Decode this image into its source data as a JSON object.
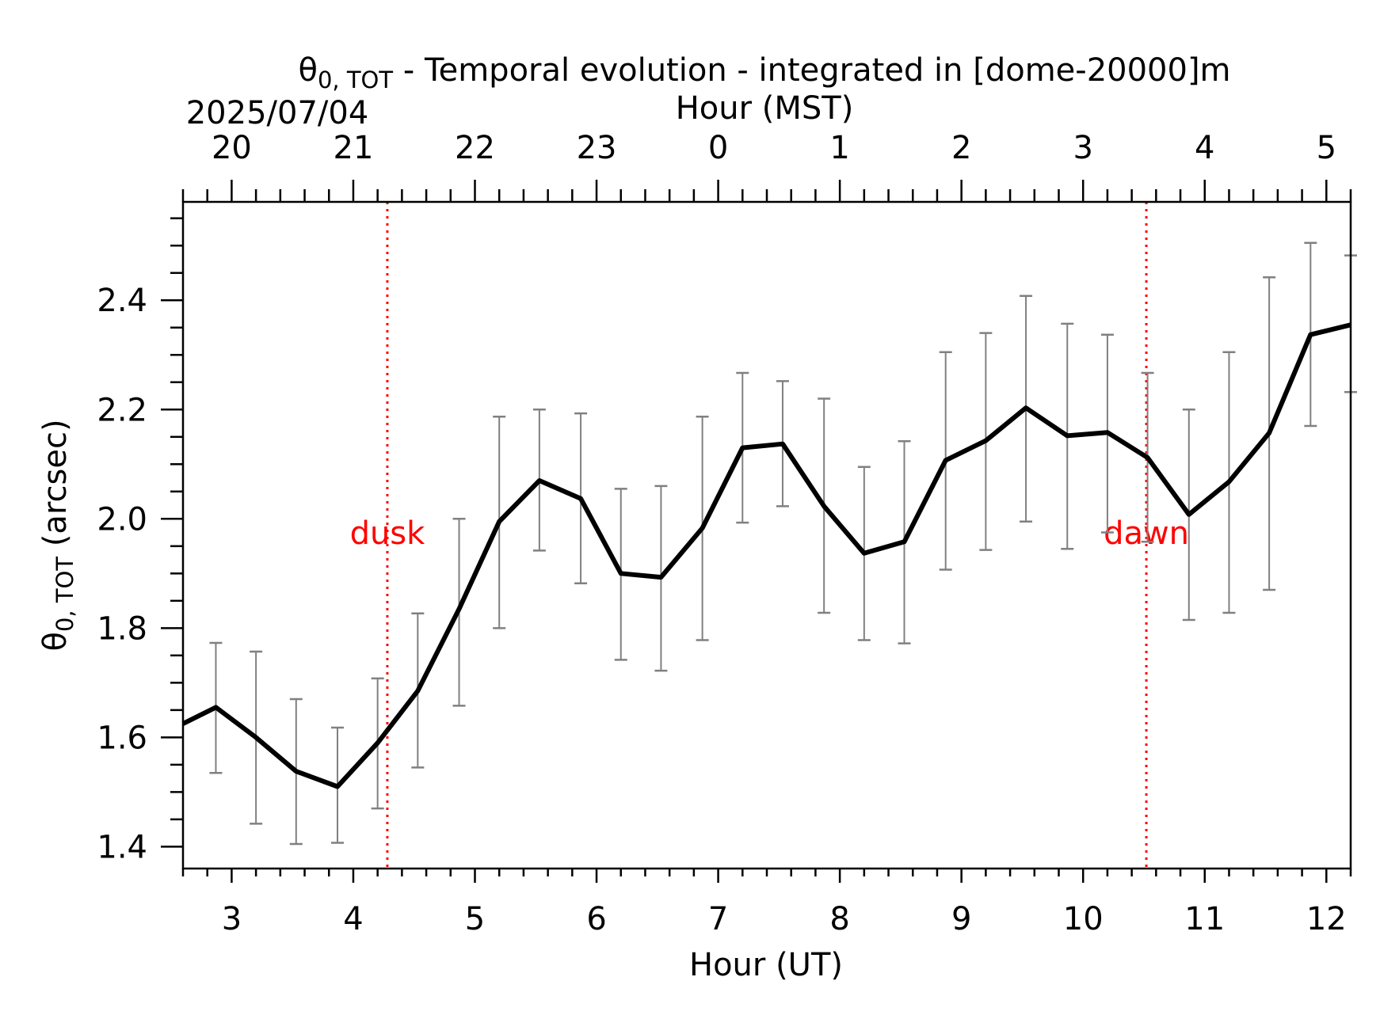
{
  "chart_data": {
    "type": "line",
    "title_parts": {
      "symbol": "θ",
      "sub": "0, TOT",
      "rest": " - Temporal evolution - integrated in [dome-20000]m"
    },
    "date_label": "2025/07/04",
    "xlabel": "Hour (UT)",
    "xlabel_top": "Hour (MST)",
    "ylabel_parts": {
      "symbol": "θ",
      "sub": "0, TOT",
      "rest": " (arcsec)"
    },
    "xlim": [
      2.6,
      12.2
    ],
    "ylim": [
      1.36,
      2.58
    ],
    "x_ticks": [
      3,
      4,
      5,
      6,
      7,
      8,
      9,
      10,
      11,
      12
    ],
    "x_tick_labels": [
      "3",
      "4",
      "5",
      "6",
      "7",
      "8",
      "9",
      "10",
      "11",
      "12"
    ],
    "top_ticks_ut": [
      3,
      4,
      5,
      6,
      7,
      8,
      9,
      10,
      11,
      12
    ],
    "top_tick_labels": [
      "20",
      "21",
      "22",
      "23",
      "0",
      "1",
      "2",
      "3",
      "4",
      "5"
    ],
    "y_ticks": [
      1.4,
      1.6,
      1.8,
      2.0,
      2.2,
      2.4
    ],
    "y_tick_labels": [
      "1.4",
      "1.6",
      "1.8",
      "2.0",
      "2.2",
      "2.4"
    ],
    "grid": false,
    "colors": {
      "line": "#000000",
      "errorbar": "#808080",
      "marker": "#ff0000"
    },
    "series": [
      {
        "x": [
          2.6,
          2.87,
          3.2,
          3.53,
          3.87,
          4.2,
          4.53,
          4.87,
          5.2,
          5.53,
          5.87,
          6.2,
          6.53,
          6.87,
          7.2,
          7.53,
          7.87,
          8.2,
          8.53,
          8.87,
          9.2,
          9.53,
          9.87,
          10.2,
          10.53,
          10.87,
          11.2,
          11.53,
          11.87,
          12.2
        ],
        "y": [
          1.625,
          1.655,
          1.6,
          1.538,
          1.51,
          1.59,
          1.685,
          1.835,
          1.995,
          2.07,
          2.037,
          1.9,
          1.893,
          1.983,
          2.13,
          2.137,
          2.023,
          1.937,
          1.958,
          2.107,
          2.143,
          2.203,
          2.152,
          2.158,
          2.112,
          2.008,
          2.068,
          2.157,
          2.337,
          2.355
        ],
        "err_low": [
          null,
          1.535,
          1.442,
          1.405,
          1.407,
          1.47,
          1.545,
          1.658,
          1.8,
          1.942,
          1.882,
          1.742,
          1.722,
          1.778,
          1.993,
          2.023,
          1.828,
          1.778,
          1.772,
          1.907,
          1.943,
          1.995,
          1.945,
          1.975,
          1.958,
          1.815,
          1.828,
          1.87,
          2.17,
          2.232
        ],
        "err_high": [
          null,
          1.773,
          1.757,
          1.67,
          1.618,
          1.708,
          1.827,
          2.0,
          2.187,
          2.2,
          2.193,
          2.055,
          2.06,
          2.187,
          2.267,
          2.252,
          2.22,
          2.095,
          2.142,
          2.305,
          2.34,
          2.408,
          2.357,
          2.337,
          2.267,
          2.2,
          2.305,
          2.442,
          2.505,
          2.482
        ]
      }
    ],
    "markers": [
      {
        "x": 4.28,
        "label": "dusk"
      },
      {
        "x": 10.52,
        "label": "dawn"
      }
    ]
  }
}
